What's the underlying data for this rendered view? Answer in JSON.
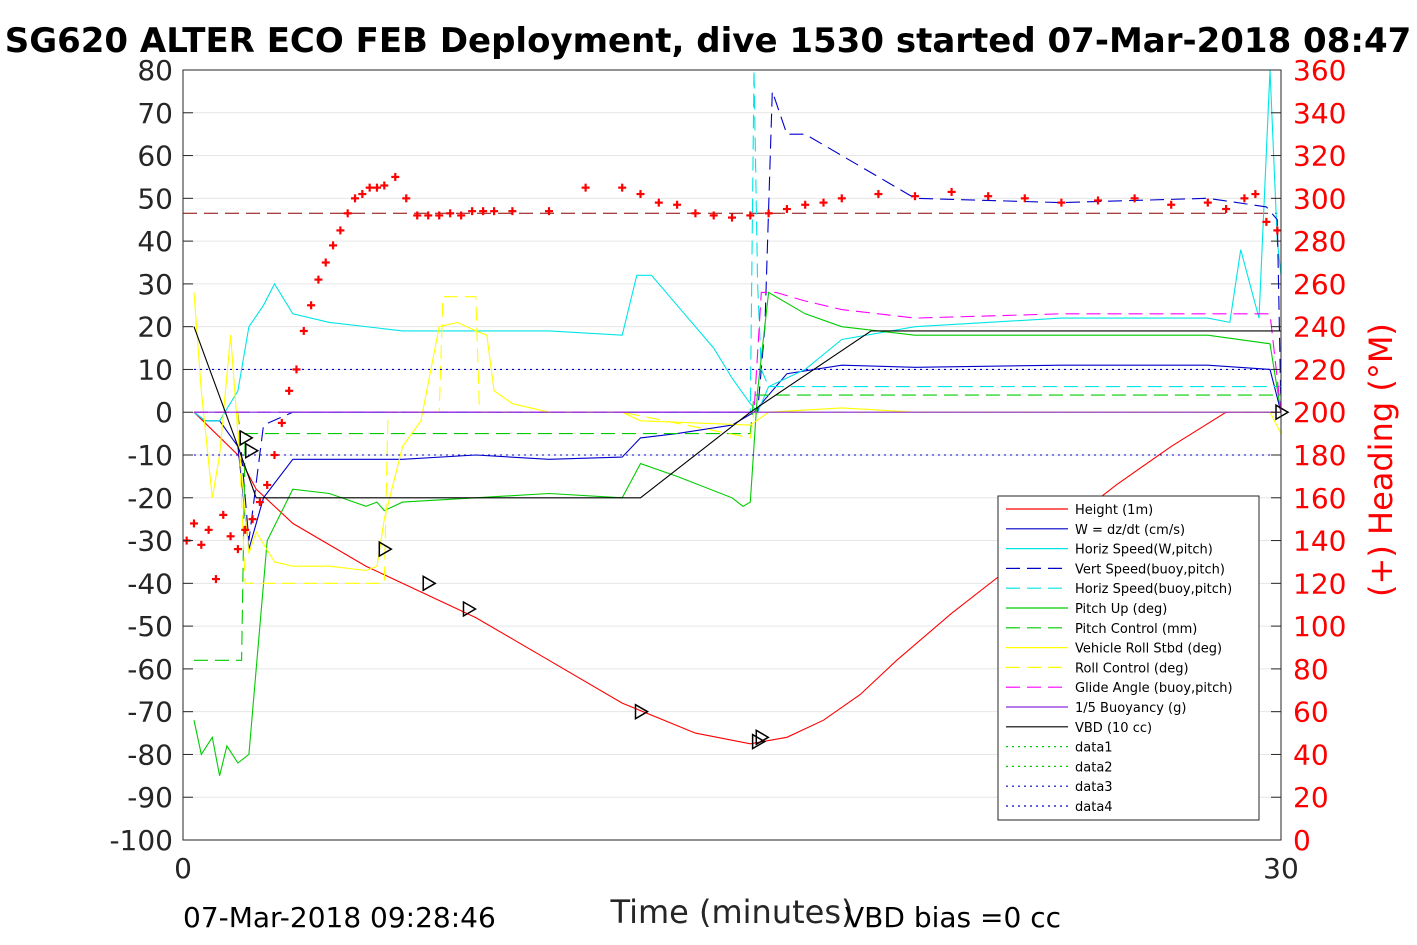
{
  "chart_data": {
    "type": "line",
    "title": "SG620 ALTER ECO FEB Deployment, dive 1530 started 07-Mar-2018 08:47",
    "xlabel": "Time (minutes)",
    "ylabel_right": "(+) Heading (°M)",
    "xlim": [
      0,
      30
    ],
    "ylim_left": [
      -100,
      80
    ],
    "ylim_right": [
      0,
      360
    ],
    "x_ticks": [
      "0",
      "30"
    ],
    "y_ticks_left": [
      "80",
      "70",
      "60",
      "50",
      "40",
      "30",
      "20",
      "10",
      "0",
      "-10",
      "-20",
      "-30",
      "-40",
      "-50",
      "-60",
      "-70",
      "-80",
      "-90",
      "-100"
    ],
    "y_ticks_right": [
      "360",
      "340",
      "320",
      "300",
      "280",
      "260",
      "240",
      "220",
      "200",
      "180",
      "160",
      "140",
      "120",
      "100",
      "80",
      "60",
      "40",
      "20",
      "0"
    ],
    "grid": "horizontal",
    "legend_position": "lower-right",
    "footer_left": "07-Mar-2018 09:28:46",
    "footer_right": "VBD bias =0 cc",
    "series": [
      {
        "name": "Height (1m)",
        "color": "#ff0000",
        "style": "solid",
        "x": [
          0.3,
          1.5,
          2.0,
          3.0,
          5.0,
          8.0,
          10.0,
          12.0,
          14.0,
          15.5,
          16.5,
          17.5,
          18.5,
          19.5,
          21.0,
          22.5,
          24.0,
          25.5,
          27.0,
          28.5,
          30.0
        ],
        "y": [
          0,
          -10,
          -18,
          -26,
          -36,
          -48,
          -58,
          -68,
          -75,
          -77.5,
          -76,
          -72,
          -66,
          -58,
          -47,
          -37,
          -27,
          -17,
          -8,
          0,
          0
        ]
      },
      {
        "name": "W = dz/dt (cm/s)",
        "color": "#0000cc",
        "style": "solid",
        "x": [
          0.3,
          0.6,
          1.0,
          1.5,
          1.8,
          2.2,
          3.0,
          4.0,
          6.0,
          8.0,
          10.0,
          12.0,
          12.5,
          13.5,
          15.0,
          15.6,
          16.5,
          18.0,
          20.0,
          24.0,
          28.0,
          29.7,
          30.0
        ],
        "y": [
          0,
          -2,
          -2,
          -8,
          -32,
          -20,
          -11,
          -11,
          -11,
          -10,
          -11,
          -10.5,
          -6,
          -5,
          -3,
          0,
          9,
          11,
          10.5,
          11,
          11,
          10,
          0
        ]
      },
      {
        "name": "Horiz Speed(W,pitch)",
        "color": "#00e5e5",
        "style": "solid",
        "x": [
          0.3,
          0.6,
          1.0,
          1.5,
          1.8,
          2.2,
          2.5,
          3.0,
          4.0,
          6.0,
          8.0,
          10.0,
          12.0,
          12.4,
          12.8,
          13.5,
          14.5,
          15.0,
          15.5,
          15.7,
          16.0,
          17.0,
          18.0,
          20.0,
          24.0,
          28.0,
          28.6,
          28.9,
          29.4,
          29.7,
          29.9,
          30.0
        ],
        "y": [
          0,
          -2,
          -2,
          5,
          20,
          25,
          30,
          23,
          21,
          19,
          19,
          19,
          18,
          32,
          32,
          25,
          15,
          8,
          2,
          0,
          6,
          10,
          17,
          20,
          22,
          22,
          21,
          38,
          22,
          80,
          40,
          32
        ]
      },
      {
        "name": "Vert Speed(buoy,pitch)",
        "color": "#0000cc",
        "style": "dashed",
        "x": [
          0.3,
          1.5,
          1.8,
          2.2,
          3.0,
          15.5,
          15.7,
          15.9,
          16.1,
          16.5,
          17.0,
          18.0,
          19.0,
          20.0,
          24.0,
          28.0,
          29.6,
          29.9,
          30.0
        ],
        "y": [
          0,
          0,
          -30,
          -3,
          0,
          0,
          0,
          20,
          75,
          65,
          65,
          60,
          55,
          50,
          49,
          50,
          48,
          45,
          0
        ]
      },
      {
        "name": "Horiz Speed(buoy,pitch)",
        "color": "#00e5e5",
        "style": "dashed",
        "x": [
          0.3,
          15.5,
          15.6,
          15.7,
          15.8,
          16.0,
          17.0,
          30.0
        ],
        "y": [
          0,
          0,
          80,
          30,
          10,
          6,
          6,
          6
        ]
      },
      {
        "name": "Pitch Up (deg)",
        "color": "#00cc00",
        "style": "solid",
        "x": [
          0.3,
          0.5,
          0.8,
          1.0,
          1.2,
          1.5,
          1.8,
          2.0,
          2.3,
          3.0,
          4.0,
          5.0,
          5.3,
          5.5,
          6.0,
          8.0,
          10.0,
          12.0,
          12.5,
          13.5,
          15.0,
          15.3,
          15.5,
          15.7,
          16.0,
          17.0,
          18.0,
          20.0,
          24.0,
          28.0,
          29.7,
          30.0
        ],
        "y": [
          -72,
          -80,
          -76,
          -85,
          -78,
          -82,
          -80,
          -60,
          -30,
          -18,
          -19,
          -22,
          -21,
          -23,
          -21,
          -20,
          -19,
          -20,
          -12,
          -15,
          -20,
          -22,
          -21,
          5,
          28,
          23,
          20,
          18,
          18,
          18,
          16,
          0
        ]
      },
      {
        "name": "Pitch Control (mm)",
        "color": "#00cc00",
        "style": "dashed",
        "x": [
          0.3,
          1.6,
          1.7,
          2.0,
          15.5,
          15.6,
          30.0
        ],
        "y": [
          -58,
          -58,
          -5,
          -5,
          -5,
          4,
          4
        ]
      },
      {
        "name": "Vehicle Roll Stbd (deg)",
        "color": "#ffff00",
        "style": "solid",
        "x": [
          0.3,
          0.5,
          0.8,
          1.0,
          1.3,
          1.5,
          1.8,
          2.0,
          2.5,
          3.0,
          4.0,
          5.0,
          5.3,
          5.5,
          6.0,
          6.5,
          7.0,
          7.5,
          8.0,
          8.3,
          8.5,
          9.0,
          10.0,
          12.0,
          12.5,
          15.5,
          16.0,
          18.0,
          20.0,
          24.0,
          28.0,
          29.7,
          30.0
        ],
        "y": [
          28,
          5,
          -20,
          -10,
          18,
          -5,
          -33,
          -28,
          -35,
          -36,
          -36,
          -37,
          -36,
          -25,
          -8,
          -2,
          20,
          21,
          19,
          18,
          5,
          2,
          0,
          0,
          -2,
          -3,
          0,
          1,
          0,
          0,
          0,
          0,
          -5
        ]
      },
      {
        "name": "Roll Control (deg)",
        "color": "#ffff00",
        "style": "dashed",
        "x": [
          0.3,
          1.5,
          1.7,
          2.0,
          5.5,
          5.6,
          6.0,
          7.0,
          7.1,
          8.0,
          8.1,
          12.0,
          15.5,
          15.6,
          30.0
        ],
        "y": [
          0,
          0,
          -40,
          -40,
          -40,
          0,
          0,
          0,
          27,
          27,
          0,
          0,
          -6,
          0,
          0
        ]
      },
      {
        "name": "Glide Angle (buoy,pitch)",
        "color": "#ff00ff",
        "style": "dashed",
        "x": [
          0.3,
          15.5,
          15.6,
          15.8,
          16.2,
          17.0,
          18.0,
          19.0,
          20.0,
          24.0,
          28.0,
          29.7,
          30.0
        ],
        "y": [
          0,
          0,
          0,
          28,
          28,
          26,
          24,
          23,
          22,
          23,
          23,
          23,
          0
        ]
      },
      {
        "name": "1/5 Buoyancy (g)",
        "color": "#8a2be2",
        "style": "solid",
        "x": [
          0.3,
          30.0
        ],
        "y": [
          0,
          0
        ]
      },
      {
        "name": "VBD (10 cc)",
        "color": "#000000",
        "style": "solid",
        "x": [
          0.3,
          1.5,
          2.0,
          12.5,
          15.5,
          18.8,
          30.0
        ],
        "y": [
          20,
          -8,
          -20,
          -20,
          0,
          19,
          19
        ]
      },
      {
        "name": "data1",
        "color": "#00cc00",
        "style": "dotted",
        "x": [],
        "y": []
      },
      {
        "name": "data2",
        "color": "#00cc00",
        "style": "dotted",
        "x": [],
        "y": []
      },
      {
        "name": "data3",
        "color": "#0000cc",
        "style": "dotted",
        "x": [
          0.3,
          30.0
        ],
        "y": [
          10,
          10
        ]
      },
      {
        "name": "data4",
        "color": "#0000cc",
        "style": "dotted",
        "x": [
          0.3,
          30.0
        ],
        "y": [
          -10,
          -10
        ]
      }
    ],
    "heading_series": {
      "color": "#ff0000",
      "reference_heading": 293,
      "x": [
        0.1,
        0.3,
        0.5,
        0.7,
        0.9,
        1.1,
        1.3,
        1.5,
        1.7,
        1.9,
        2.1,
        2.3,
        2.5,
        2.7,
        2.9,
        3.1,
        3.3,
        3.5,
        3.7,
        3.9,
        4.1,
        4.3,
        4.5,
        4.7,
        4.9,
        5.1,
        5.3,
        5.5,
        5.8,
        6.1,
        6.4,
        6.7,
        7.0,
        7.3,
        7.6,
        7.9,
        8.2,
        8.5,
        9.0,
        10.0,
        11.0,
        12.0,
        12.5,
        13.0,
        13.5,
        14.0,
        14.5,
        15.0,
        15.5,
        16.0,
        16.5,
        17.0,
        17.5,
        18.0,
        19.0,
        20.0,
        21.0,
        22.0,
        23.0,
        24.0,
        25.0,
        26.0,
        27.0,
        28.0,
        28.5,
        29.0,
        29.3,
        29.6,
        29.9
      ],
      "y": [
        140,
        148,
        138,
        145,
        122,
        152,
        142,
        136,
        145,
        150,
        158,
        166,
        180,
        195,
        210,
        220,
        238,
        250,
        262,
        270,
        278,
        285,
        293,
        300,
        302,
        305,
        305,
        306,
        310,
        300,
        292,
        292,
        292,
        293,
        292,
        294,
        294,
        294,
        294,
        294,
        305,
        305,
        302,
        298,
        297,
        293,
        292,
        291,
        292,
        293,
        295,
        297,
        298,
        300,
        302,
        301,
        303,
        301,
        300,
        298,
        299,
        300,
        297,
        298,
        295,
        300,
        302,
        289,
        285
      ]
    },
    "markers": {
      "x": [
        1.7,
        1.85,
        5.5,
        6.7,
        7.8,
        12.5,
        15.7,
        15.8,
        30.0
      ],
      "y": [
        -6,
        -9,
        -32,
        -40,
        -46,
        -70,
        -77,
        -76,
        0
      ]
    }
  }
}
